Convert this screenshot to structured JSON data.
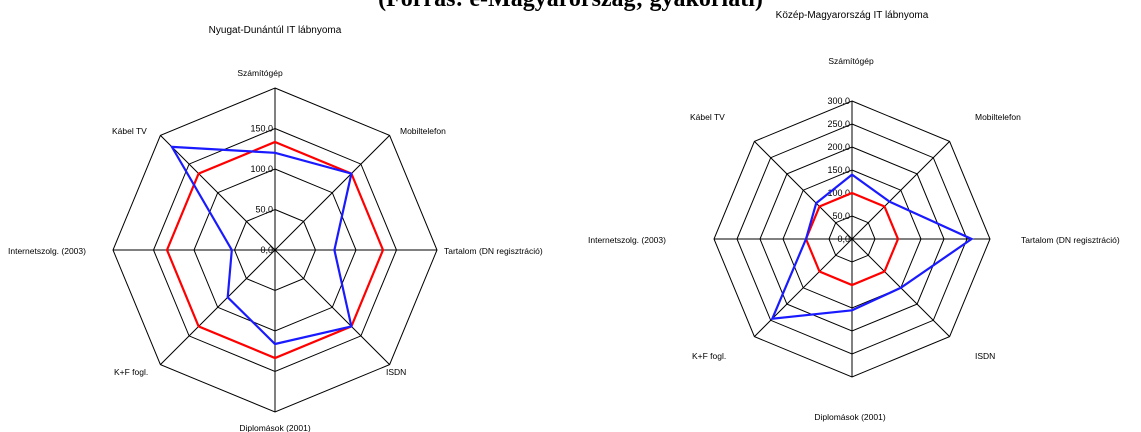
{
  "header_text": "(Forrás: e-Magyarország; gyakorlati)",
  "colors": {
    "region": "#1a1aff",
    "reference": "#ff0000",
    "grid": "#000000"
  },
  "chart_data": [
    {
      "type": "radar",
      "title": "Nyugat-Dunántúl IT lábnyoma",
      "categories": [
        "Számítógép",
        "Mobiltelefon",
        "Tartalom (DN regisztráció)",
        "ISDN",
        "Diplomások (2001)",
        "K+F fogl.",
        "Internetszolg. (2003)",
        "Kábel TV"
      ],
      "ticks": [
        "0,0",
        "50,0",
        "100,0",
        "150,0"
      ],
      "rmax": 150,
      "rings": 4,
      "series": [
        {
          "color_key": "reference",
          "values": [
            100,
            100,
            100,
            100,
            100,
            100,
            100,
            100
          ]
        },
        {
          "color_key": "region",
          "values": [
            90,
            100,
            55,
            100,
            87,
            62,
            40,
            135
          ]
        }
      ]
    },
    {
      "type": "radar",
      "title": "Közép-Magyarország IT lábnyoma",
      "categories": [
        "Számítógép",
        "Mobiltelefon",
        "Tartalom (DN regisztráció)",
        "ISDN",
        "Diplomások (2001)",
        "K+F fogl.",
        "Internetszolg. (2003)",
        "Kábel TV"
      ],
      "ticks": [
        "0,0",
        "50,0",
        "100,0",
        "150,0",
        "200,0",
        "250,0",
        "300,0"
      ],
      "rmax": 300,
      "rings": 6,
      "series": [
        {
          "color_key": "reference",
          "values": [
            100,
            100,
            100,
            100,
            100,
            100,
            100,
            100
          ]
        },
        {
          "color_key": "region",
          "values": [
            140,
            115,
            260,
            150,
            155,
            245,
            100,
            110
          ]
        }
      ]
    }
  ]
}
